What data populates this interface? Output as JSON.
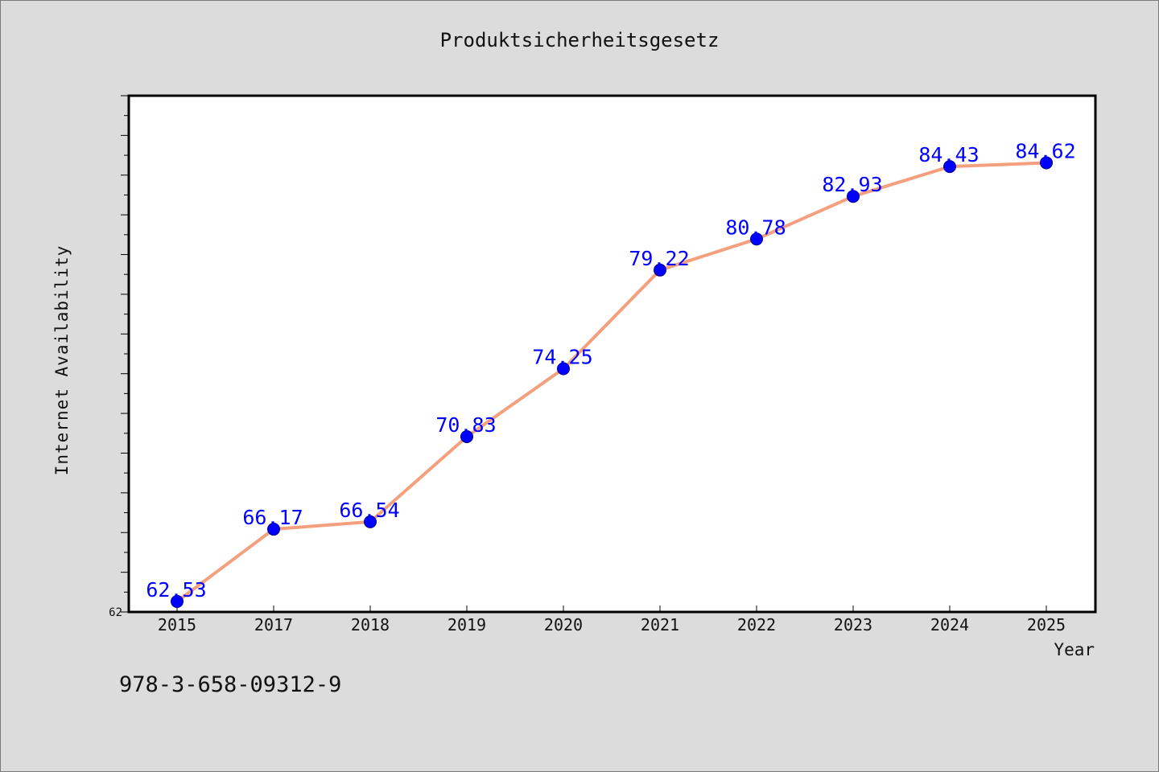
{
  "chart_data": {
    "type": "line",
    "title": "Produktsicherheitsgesetz",
    "xlabel": "Year",
    "ylabel": "Internet Availability",
    "categories": [
      "2015",
      "2017",
      "2018",
      "2019",
      "2020",
      "2021",
      "2022",
      "2023",
      "2024",
      "2025"
    ],
    "series": [
      {
        "values": [
          62.53,
          66.17,
          66.54,
          70.83,
          74.25,
          79.22,
          80.78,
          82.93,
          84.43,
          84.62
        ],
        "labels": [
          "62.53",
          "66.17",
          "66.54",
          "70.83",
          "74.25",
          "79.22",
          "80.78",
          "82.93",
          "84.43",
          "84.62"
        ]
      }
    ],
    "ylim": [
      62,
      88
    ],
    "y_tick_labels": [
      "62"
    ],
    "grid": false,
    "line_color": "#f4a07e",
    "marker_color": "#0000ff",
    "label_color": "#0000ff"
  },
  "footer": {
    "isbn": "978-3-658-09312-9"
  }
}
